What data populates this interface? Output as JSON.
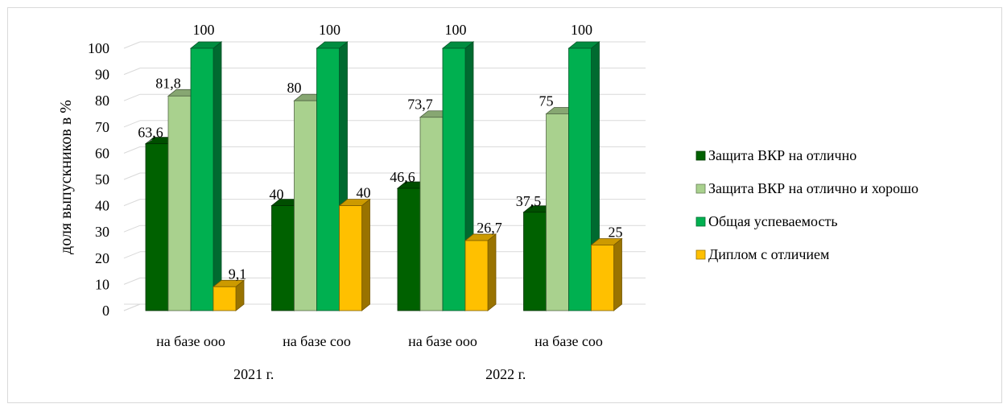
{
  "chart_data": {
    "type": "bar",
    "style": "3d-clustered-column",
    "ylabel": "доля выпускников в %",
    "ylim": [
      0,
      100
    ],
    "yticks": [
      "0",
      "10",
      "20",
      "30",
      "40",
      "50",
      "60",
      "70",
      "80",
      "90",
      "100"
    ],
    "grid": true,
    "legend_position": "right",
    "categories": [
      "на базе ооо",
      "на базе соо",
      "на базе ооо",
      "на базе соо"
    ],
    "groups": [
      {
        "label": "2021 г.",
        "categories": [
          0,
          1
        ]
      },
      {
        "label": "2022 г.",
        "categories": [
          2,
          3
        ]
      }
    ],
    "series": [
      {
        "name": "Защита ВКР на отлично",
        "color": "#006100",
        "values": [
          63.6,
          40,
          46.6,
          37.5
        ],
        "labels": [
          "63,6",
          "40",
          "46,6",
          "37,5"
        ]
      },
      {
        "name": "Защита ВКР на отлично и хорошо",
        "color": "#a9d18e",
        "values": [
          81.8,
          80,
          73.7,
          75
        ],
        "labels": [
          "81,8",
          "80",
          "73,7",
          "75"
        ]
      },
      {
        "name": "Общая успеваемость",
        "color": "#00b050",
        "values": [
          100,
          100,
          100,
          100
        ],
        "labels": [
          "100",
          "100",
          "100",
          "100"
        ]
      },
      {
        "name": "Диплом с отличием",
        "color": "#ffc000",
        "values": [
          9.1,
          40,
          26.7,
          25
        ],
        "labels": [
          "9,1",
          "40",
          "26,7",
          "25"
        ]
      }
    ]
  }
}
